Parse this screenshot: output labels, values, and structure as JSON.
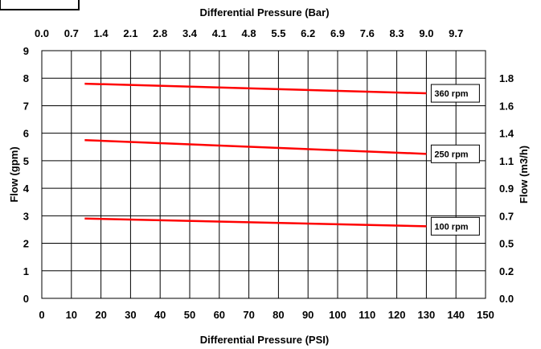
{
  "chart_data": {
    "type": "line",
    "top_axis_title": "Differential Pressure (Bar)",
    "top_ticks": [
      "0.0",
      "0.7",
      "1.4",
      "2.1",
      "2.8",
      "3.4",
      "4.1",
      "4.8",
      "5.5",
      "6.2",
      "6.9",
      "7.6",
      "8.3",
      "9.0",
      "9.7"
    ],
    "xlabel": "Differential Pressure (PSI)",
    "x_ticks": [
      "0",
      "10",
      "20",
      "30",
      "40",
      "50",
      "60",
      "70",
      "80",
      "90",
      "100",
      "110",
      "120",
      "130",
      "140",
      "150"
    ],
    "xlim": [
      0,
      150
    ],
    "ylabel": "Flow (gpm)",
    "y_ticks": [
      "0",
      "1",
      "2",
      "3",
      "4",
      "5",
      "6",
      "7",
      "8",
      "9"
    ],
    "ylim": [
      0,
      9
    ],
    "right_axis_title": "Flow (m3/h)",
    "right_ticks": [
      {
        "label": "1.8",
        "gpm": 8.0
      },
      {
        "label": "1.6",
        "gpm": 7.0
      },
      {
        "label": "1.4",
        "gpm": 6.0
      },
      {
        "label": "1.1",
        "gpm": 5.0
      },
      {
        "label": "0.9",
        "gpm": 4.0
      },
      {
        "label": "0.7",
        "gpm": 3.0
      },
      {
        "label": "0.5",
        "gpm": 2.0
      },
      {
        "label": "0.2",
        "gpm": 1.0
      },
      {
        "label": "0.0",
        "gpm": 0.0
      }
    ],
    "grid": true,
    "series": [
      {
        "name": "360 rpm",
        "color": "#ff0000",
        "x": [
          14.5,
          130
        ],
        "y": [
          7.8,
          7.45
        ]
      },
      {
        "name": "250 rpm",
        "color": "#ff0000",
        "x": [
          14.5,
          130
        ],
        "y": [
          5.75,
          5.25
        ]
      },
      {
        "name": "100 rpm",
        "color": "#ff0000",
        "x": [
          14.5,
          130
        ],
        "y": [
          2.9,
          2.62
        ]
      }
    ]
  }
}
